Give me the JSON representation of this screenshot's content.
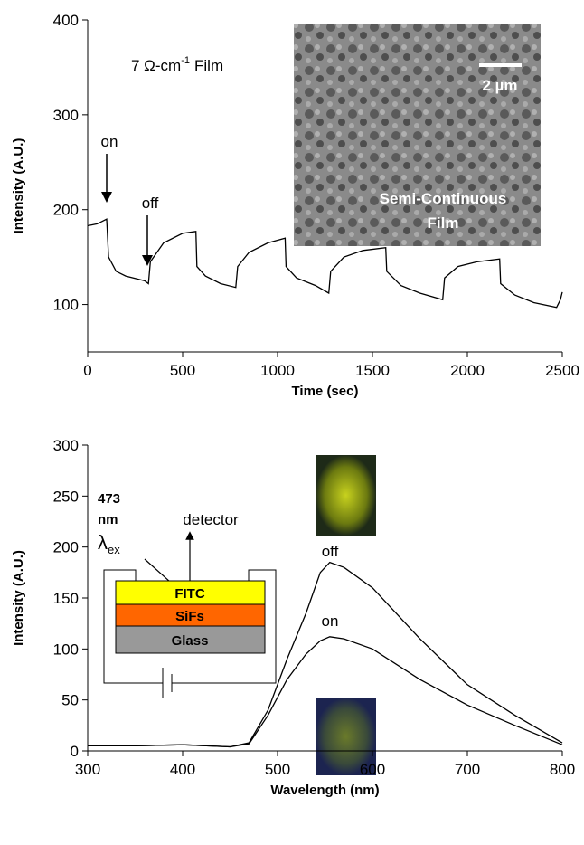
{
  "chart_data": [
    {
      "type": "line",
      "xlabel": "Time (sec)",
      "ylabel": "Intensity (A.U.)",
      "color": "#000000",
      "x": [
        0,
        50,
        100,
        110,
        150,
        200,
        300,
        320,
        330,
        400,
        500,
        570,
        575,
        620,
        700,
        780,
        790,
        850,
        950,
        1040,
        1045,
        1100,
        1200,
        1270,
        1280,
        1350,
        1450,
        1570,
        1575,
        1650,
        1750,
        1870,
        1880,
        1950,
        2050,
        2170,
        2175,
        2250,
        2350,
        2470,
        2490,
        2500
      ],
      "values": [
        183,
        185,
        190,
        150,
        135,
        130,
        125,
        122,
        145,
        165,
        175,
        177,
        140,
        130,
        122,
        118,
        140,
        155,
        165,
        170,
        140,
        128,
        120,
        112,
        135,
        150,
        157,
        160,
        135,
        120,
        112,
        105,
        128,
        140,
        145,
        148,
        122,
        110,
        102,
        97,
        105,
        113
      ],
      "xlim": [
        0,
        2500
      ],
      "xticks": [
        0,
        500,
        1000,
        1500,
        2000,
        2500
      ],
      "ylim": [
        50,
        400
      ],
      "yticks": [
        100,
        200,
        300,
        400
      ],
      "annotations": [
        "7 Ω-cm",
        "-1",
        "Film",
        "2 µm",
        "Semi-Continuous",
        "Film",
        "on",
        "off"
      ]
    },
    {
      "type": "line",
      "xlabel": "Wavelength (nm)",
      "ylabel": "Intensity (A.U.)",
      "x": [
        300,
        350,
        400,
        450,
        470,
        490,
        510,
        530,
        545,
        555,
        570,
        600,
        650,
        700,
        750,
        800
      ],
      "series": [
        {
          "name": "off",
          "color": "#000000",
          "values": [
            5,
            5,
            6,
            4,
            8,
            40,
            90,
            135,
            175,
            185,
            180,
            160,
            110,
            65,
            35,
            8
          ]
        },
        {
          "name": "on",
          "color": "#000000",
          "values": [
            5,
            5,
            6,
            4,
            7,
            35,
            70,
            95,
            108,
            112,
            110,
            100,
            70,
            45,
            25,
            6
          ]
        }
      ],
      "xlim": [
        300,
        800
      ],
      "xticks": [
        300,
        400,
        500,
        600,
        700,
        800
      ],
      "ylim": [
        0,
        300
      ],
      "yticks": [
        0,
        50,
        100,
        150,
        200,
        250,
        300
      ],
      "annotations": [
        "473",
        "nm",
        "λ",
        "ex",
        "detector",
        "FITC",
        "SiFs",
        "Glass"
      ]
    }
  ]
}
